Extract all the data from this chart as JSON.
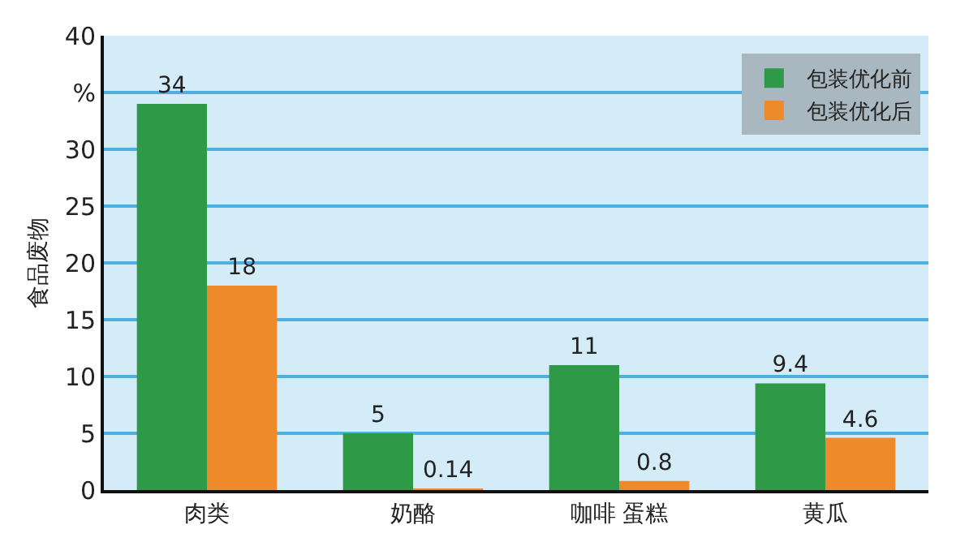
{
  "chart_data": {
    "type": "bar",
    "ylabel": "食品废物",
    "categories": [
      "肉类",
      "奶酪",
      "咖啡 蛋糕",
      "黄瓜"
    ],
    "series": [
      {
        "name": "包装优化前",
        "color": "#2e9a48",
        "values": [
          34,
          5,
          11,
          9.4
        ]
      },
      {
        "name": "包装优化后",
        "color": "#ee8a2a",
        "values": [
          18,
          0.14,
          0.8,
          4.6
        ]
      }
    ],
    "ylim": [
      0,
      40
    ],
    "yticks": [
      0,
      5,
      10,
      15,
      20,
      25,
      30,
      {
        "value": 35,
        "label": "%"
      },
      40
    ],
    "grid": "y",
    "legend": "top right",
    "data_labels": true
  }
}
